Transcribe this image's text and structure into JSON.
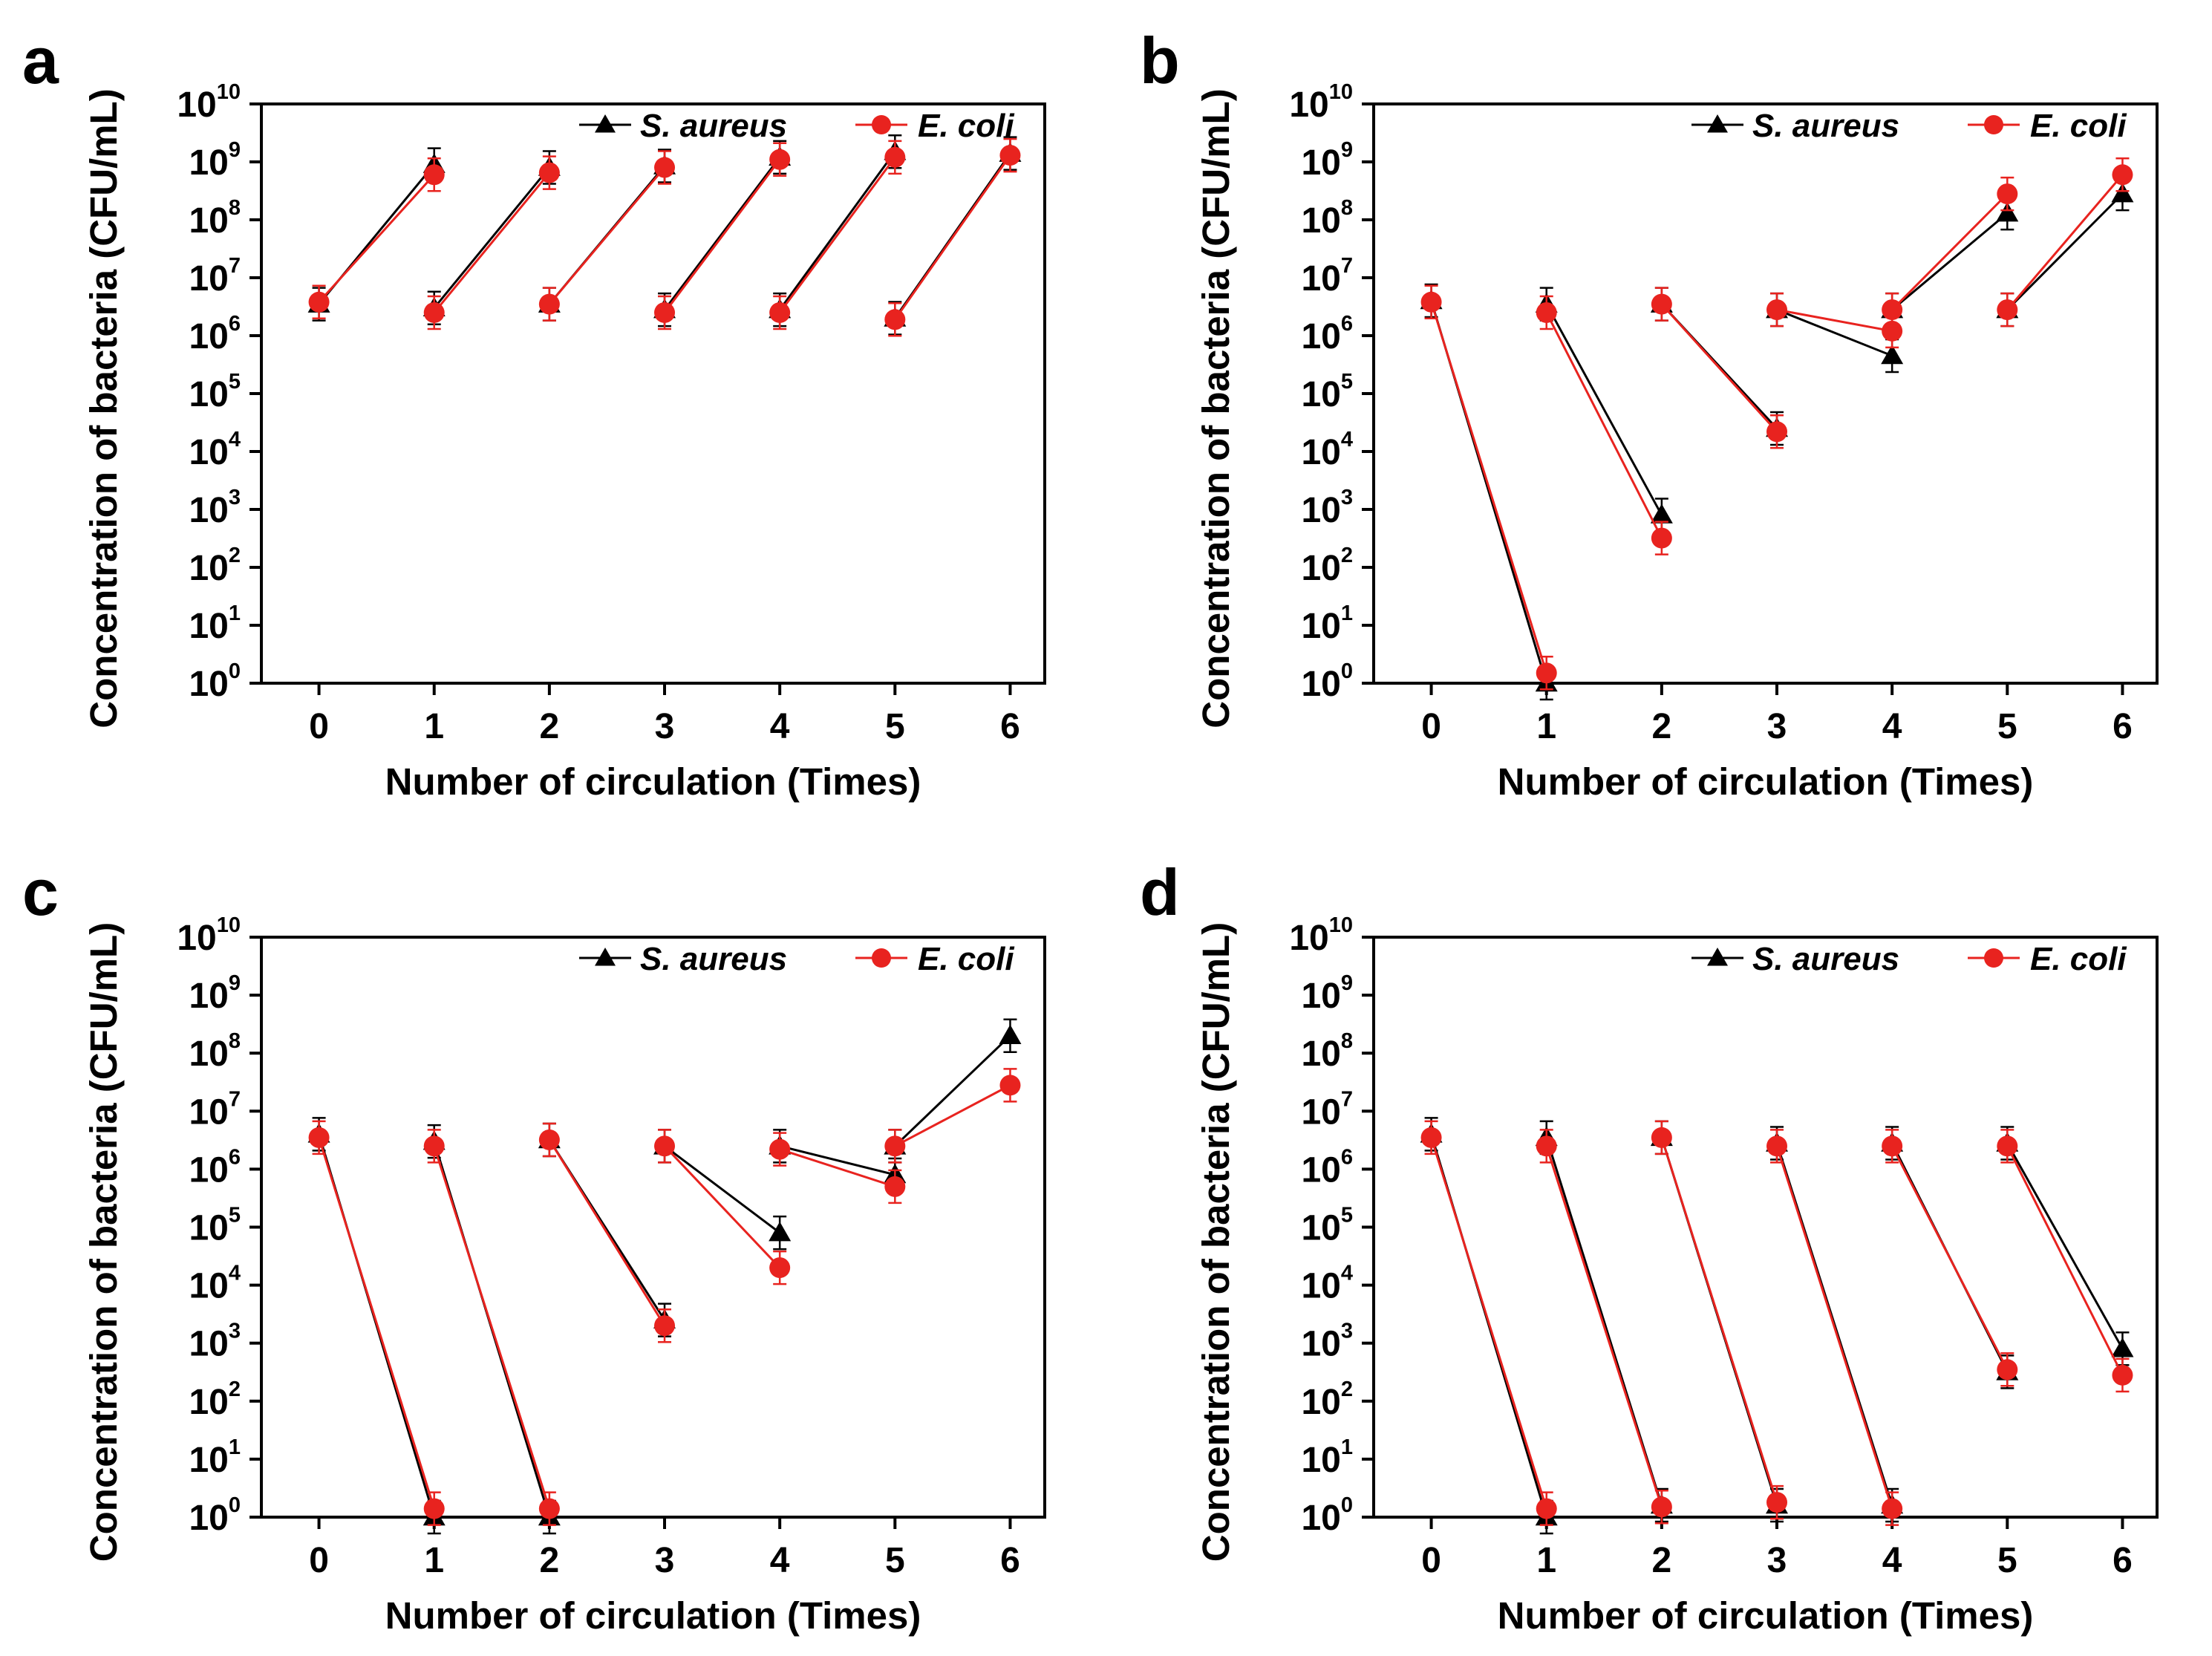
{
  "colors": {
    "s_aureus": "#000000",
    "e_coli": "#e8231f",
    "axis": "#000000",
    "background": "#ffffff"
  },
  "chart_data": [
    {
      "panel": "a",
      "type": "line",
      "xlabel": "Number of circulation (Times)",
      "ylabel": "Concentration of bacteria (CFU/mL)",
      "y_scale": "log10",
      "ylim": [
        0,
        10
      ],
      "xlim": [
        -0.5,
        6.3
      ],
      "x_ticks": [
        0,
        1,
        2,
        3,
        4,
        5,
        6
      ],
      "y_ticks": [
        0,
        1,
        2,
        3,
        4,
        5,
        6,
        7,
        8,
        9,
        10
      ],
      "legend_position": "top-right",
      "grid": false,
      "series": [
        {
          "name": "S. aureus",
          "marker": "triangle",
          "color": "#000000",
          "segments": [
            [
              [
                0,
                3500000.0
              ],
              [
                1,
                900000000.0
              ]
            ],
            [
              [
                1,
                3000000.0
              ],
              [
                2,
                800000000.0
              ]
            ],
            [
              [
                2,
                3500000.0
              ],
              [
                3,
                850000000.0
              ]
            ],
            [
              [
                3,
                2800000.0
              ],
              [
                4,
                1200000000.0
              ]
            ],
            [
              [
                4,
                2800000.0
              ],
              [
                5,
                1500000000.0
              ]
            ],
            [
              [
                5,
                2000000.0
              ],
              [
                6,
                1400000000.0
              ]
            ]
          ]
        },
        {
          "name": "E. coli",
          "marker": "circle",
          "color": "#e8231f",
          "segments": [
            [
              [
                0,
                3800000.0
              ],
              [
                1,
                600000000.0
              ]
            ],
            [
              [
                1,
                2500000.0
              ],
              [
                2,
                650000000.0
              ]
            ],
            [
              [
                2,
                3500000.0
              ],
              [
                3,
                800000000.0
              ]
            ],
            [
              [
                3,
                2500000.0
              ],
              [
                4,
                1100000000.0
              ]
            ],
            [
              [
                4,
                2500000.0
              ],
              [
                5,
                1200000000.0
              ]
            ],
            [
              [
                5,
                1900000.0
              ],
              [
                6,
                1300000000.0
              ]
            ]
          ]
        }
      ]
    },
    {
      "panel": "b",
      "type": "line",
      "xlabel": "Number of circulation (Times)",
      "ylabel": "Concentration of bacteria (CFU/mL)",
      "y_scale": "log10",
      "ylim": [
        0,
        10
      ],
      "xlim": [
        -0.5,
        6.3
      ],
      "x_ticks": [
        0,
        1,
        2,
        3,
        4,
        5,
        6
      ],
      "y_ticks": [
        0,
        1,
        2,
        3,
        4,
        5,
        6,
        7,
        8,
        9,
        10
      ],
      "legend_position": "top-right",
      "grid": false,
      "series": [
        {
          "name": "S. aureus",
          "marker": "triangle",
          "color": "#000000",
          "segments": [
            [
              [
                0,
                4000000.0
              ],
              [
                1,
                1.0
              ]
            ],
            [
              [
                1,
                3500000.0
              ],
              [
                2,
                800.0
              ]
            ],
            [
              [
                2,
                3500000.0
              ],
              [
                3,
                25000.0
              ]
            ],
            [
              [
                3,
                2800000.0
              ],
              [
                4,
                450000.0
              ]
            ],
            [
              [
                4,
                2800000.0
              ],
              [
                5,
                130000000.0
              ]
            ],
            [
              [
                5,
                2800000.0
              ],
              [
                6,
                280000000.0
              ]
            ]
          ]
        },
        {
          "name": "E. coli",
          "marker": "circle",
          "color": "#e8231f",
          "segments": [
            [
              [
                0,
                3800000.0
              ],
              [
                1,
                1.5
              ]
            ],
            [
              [
                1,
                2500000.0
              ],
              [
                2,
                320.0
              ]
            ],
            [
              [
                2,
                3500000.0
              ],
              [
                3,
                22000.0
              ]
            ],
            [
              [
                3,
                2800000.0
              ],
              [
                4,
                1200000.0
              ]
            ],
            [
              [
                4,
                2800000.0
              ],
              [
                5,
                280000000.0
              ]
            ],
            [
              [
                5,
                2800000.0
              ],
              [
                6,
                600000000.0
              ]
            ]
          ]
        }
      ]
    },
    {
      "panel": "c",
      "type": "line",
      "xlabel": "Number of circulation (Times)",
      "ylabel": "Concentration of bacteria (CFU/mL)",
      "y_scale": "log10",
      "ylim": [
        0,
        10
      ],
      "xlim": [
        -0.5,
        6.3
      ],
      "x_ticks": [
        0,
        1,
        2,
        3,
        4,
        5,
        6
      ],
      "y_ticks": [
        0,
        1,
        2,
        3,
        4,
        5,
        6,
        7,
        8,
        9,
        10
      ],
      "legend_position": "top-right",
      "grid": false,
      "series": [
        {
          "name": "S. aureus",
          "marker": "triangle",
          "color": "#000000",
          "segments": [
            [
              [
                0,
                4000000.0
              ],
              [
                1,
                1.0
              ]
            ],
            [
              [
                1,
                3000000.0
              ],
              [
                2,
                1.0
              ]
            ],
            [
              [
                2,
                3200000.0
              ],
              [
                3,
                2500.0
              ]
            ],
            [
              [
                3,
                2500000.0
              ],
              [
                4,
                80000.0
              ]
            ],
            [
              [
                4,
                2500000.0
              ],
              [
                5,
                800000.0
              ]
            ],
            [
              [
                5,
                2500000.0
              ],
              [
                6,
                200000000.0
              ]
            ]
          ]
        },
        {
          "name": "E. coli",
          "marker": "circle",
          "color": "#e8231f",
          "segments": [
            [
              [
                0,
                3500000.0
              ],
              [
                1,
                1.4
              ]
            ],
            [
              [
                1,
                2500000.0
              ],
              [
                2,
                1.4
              ]
            ],
            [
              [
                2,
                3200000.0
              ],
              [
                3,
                2000.0
              ]
            ],
            [
              [
                3,
                2500000.0
              ],
              [
                4,
                20000.0
              ]
            ],
            [
              [
                4,
                2200000.0
              ],
              [
                5,
                500000.0
              ]
            ],
            [
              [
                5,
                2500000.0
              ],
              [
                6,
                28000000.0
              ]
            ]
          ]
        }
      ]
    },
    {
      "panel": "d",
      "type": "line",
      "xlabel": "Number of circulation (Times)",
      "ylabel": "Concentration of bacteria (CFU/mL)",
      "y_scale": "log10",
      "ylim": [
        0,
        10
      ],
      "xlim": [
        -0.5,
        6.3
      ],
      "x_ticks": [
        0,
        1,
        2,
        3,
        4,
        5,
        6
      ],
      "y_ticks": [
        0,
        1,
        2,
        3,
        4,
        5,
        6,
        7,
        8,
        9,
        10
      ],
      "legend_position": "top-right",
      "grid": false,
      "series": [
        {
          "name": "S. aureus",
          "marker": "triangle",
          "color": "#000000",
          "segments": [
            [
              [
                0,
                4000000.0
              ],
              [
                1,
                1.0
              ]
            ],
            [
              [
                1,
                3500000.0
              ],
              [
                2,
                1.6
              ]
            ],
            [
              [
                2,
                3500000.0
              ],
              [
                3,
                1.6
              ]
            ],
            [
              [
                3,
                2800000.0
              ],
              [
                4,
                1.6
              ]
            ],
            [
              [
                4,
                2800000.0
              ],
              [
                5,
                320.0
              ]
            ],
            [
              [
                5,
                2800000.0
              ],
              [
                6,
                800.0
              ]
            ]
          ]
        },
        {
          "name": "E. coli",
          "marker": "circle",
          "color": "#e8231f",
          "segments": [
            [
              [
                0,
                3500000.0
              ],
              [
                1,
                1.4
              ]
            ],
            [
              [
                1,
                2500000.0
              ],
              [
                2,
                1.5
              ]
            ],
            [
              [
                2,
                3500000.0
              ],
              [
                3,
                1.8
              ]
            ],
            [
              [
                3,
                2500000.0
              ],
              [
                4,
                1.4
              ]
            ],
            [
              [
                4,
                2500000.0
              ],
              [
                5,
                350.0
              ]
            ],
            [
              [
                5,
                2500000.0
              ],
              [
                6,
                280.0
              ]
            ]
          ]
        }
      ]
    }
  ]
}
